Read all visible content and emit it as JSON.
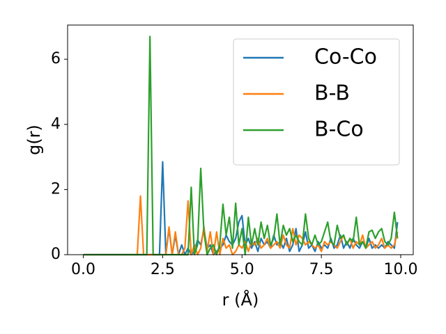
{
  "chart_data": {
    "type": "line",
    "xlabel": "r (Å)",
    "ylabel": "g(r)",
    "x": [
      0,
      0.1,
      0.2,
      0.3,
      0.4,
      0.5,
      0.6,
      0.7,
      0.8,
      0.9,
      1,
      1.1,
      1.2,
      1.3,
      1.4,
      1.5,
      1.6,
      1.7,
      1.8,
      1.9,
      2,
      2.1,
      2.2,
      2.3,
      2.4,
      2.5,
      2.6,
      2.7,
      2.8,
      2.9,
      3,
      3.1,
      3.2,
      3.3,
      3.4,
      3.5,
      3.6,
      3.7,
      3.8,
      3.9,
      4,
      4.1,
      4.2,
      4.3,
      4.4,
      4.5,
      4.6,
      4.7,
      4.8,
      4.9,
      5,
      5.1,
      5.2,
      5.3,
      5.4,
      5.5,
      5.6,
      5.7,
      5.8,
      5.9,
      6,
      6.1,
      6.2,
      6.3,
      6.4,
      6.5,
      6.6,
      6.7,
      6.8,
      6.9,
      7,
      7.1,
      7.2,
      7.3,
      7.4,
      7.5,
      7.6,
      7.7,
      7.8,
      7.9,
      8,
      8.1,
      8.2,
      8.3,
      8.4,
      8.5,
      8.6,
      8.7,
      8.8,
      8.9,
      9,
      9.1,
      9.2,
      9.3,
      9.4,
      9.5,
      9.6,
      9.7,
      9.8,
      9.9
    ],
    "series": [
      {
        "name": "Co-Co",
        "color": "#1f77b4",
        "values": [
          0,
          0,
          0,
          0,
          0,
          0,
          0,
          0,
          0,
          0,
          0,
          0,
          0,
          0,
          0,
          0,
          0,
          0,
          0,
          0,
          0,
          0,
          0,
          0,
          0,
          2.85,
          0,
          0.8,
          0,
          0.6,
          0,
          0.3,
          0,
          0.2,
          0,
          0.1,
          0.45,
          0.3,
          0.8,
          0.2,
          0.3,
          0,
          0.1,
          0.2,
          0.3,
          0.6,
          0.4,
          0.3,
          0.5,
          1.0,
          1.2,
          0.3,
          0.5,
          0.2,
          0.4,
          0.1,
          0.5,
          0.3,
          0.4,
          0.2,
          0.6,
          0.3,
          0.4,
          0.2,
          0.5,
          0.1,
          0.3,
          0.8,
          0.1,
          0.3,
          0.7,
          0.2,
          0.3,
          0.1,
          0.4,
          0.2,
          0.3,
          0.2,
          0.5,
          0.2,
          0.3,
          0.6,
          0.2,
          0.4,
          0.2,
          0.5,
          0.3,
          0.2,
          0.4,
          0.2,
          0.5,
          0.2,
          0.3,
          0.2,
          0.3,
          0.2,
          0.4,
          0.3,
          0.2,
          1.0
        ]
      },
      {
        "name": "B-B",
        "color": "#ff7f0e",
        "values": [
          0,
          0,
          0,
          0,
          0,
          0,
          0,
          0,
          0,
          0,
          0,
          0,
          0,
          0,
          0,
          0,
          0,
          0,
          1.8,
          0,
          0,
          0,
          0,
          0,
          0,
          0,
          0,
          0.85,
          0,
          0.7,
          0,
          0,
          0.2,
          1.65,
          0,
          0.3,
          0,
          0.2,
          0.85,
          0.1,
          0.7,
          0,
          0.7,
          0,
          0.5,
          0.2,
          0.3,
          0,
          0.1,
          0.3,
          0.2,
          0.4,
          0.1,
          0.4,
          0.3,
          0.5,
          0.2,
          0.3,
          0.5,
          0.2,
          0.3,
          0.4,
          0.2,
          0.6,
          0.3,
          0.2,
          0.8,
          0.3,
          0.6,
          0.5,
          0.3,
          0.4,
          0.3,
          0.2,
          0.3,
          0.1,
          0.4,
          0.3,
          0.4,
          0.3,
          0.2,
          0.4,
          0.6,
          0.3,
          0.5,
          0.2,
          0.4,
          0.3,
          0.6,
          0.2,
          0.3,
          0.4,
          0.2,
          0.3,
          0.5,
          0.2,
          0.3,
          0.2,
          0.3,
          0.7
        ]
      },
      {
        "name": "B-Co",
        "color": "#2ca02c",
        "values": [
          0,
          0,
          0,
          0,
          0,
          0,
          0,
          0,
          0,
          0,
          0,
          0,
          0,
          0,
          0,
          0,
          0,
          0,
          0,
          0,
          0,
          6.7,
          0,
          0,
          0,
          0,
          0,
          0,
          0,
          0,
          0,
          0,
          0,
          0,
          2.07,
          0,
          0.3,
          2.65,
          0.7,
          0,
          0.2,
          0.3,
          0,
          0.3,
          1.55,
          0.6,
          1.15,
          0.2,
          1.58,
          0.3,
          0.8,
          0,
          1.15,
          0.3,
          0.8,
          0.3,
          1.0,
          0.5,
          0.9,
          0.3,
          0.5,
          1.25,
          0.3,
          0.9,
          0.6,
          0.8,
          0.4,
          0.6,
          0.4,
          0.3,
          1.25,
          0.5,
          0.3,
          0.6,
          0.3,
          0.4,
          0.7,
          1.0,
          0.4,
          0.3,
          0.9,
          0.5,
          0.6,
          0.3,
          0.5,
          0.4,
          1.15,
          0.3,
          0.4,
          0.2,
          0.7,
          0.75,
          0.5,
          0.7,
          0.8,
          0.4,
          0.3,
          0.5,
          1.3,
          0.5
        ]
      }
    ],
    "xlim": [
      -0.495,
      10.395
    ],
    "ylim": [
      0,
      7.05
    ],
    "xticks": [
      {
        "value": 0,
        "label": "0.0"
      },
      2.5,
      {
        "value": 5,
        "label": "5.0"
      },
      7.5,
      {
        "value": 10,
        "label": "10.0"
      }
    ],
    "yticks": [
      0,
      2,
      4,
      6
    ],
    "legend": "upper right"
  }
}
